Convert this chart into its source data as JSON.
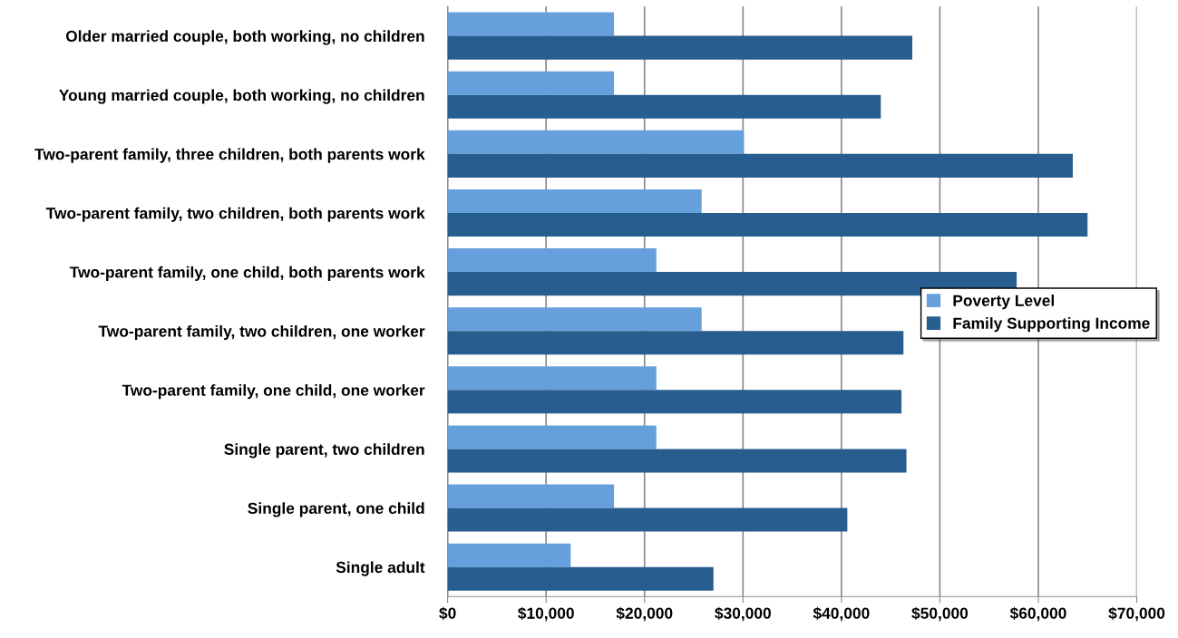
{
  "chart_data": {
    "type": "bar",
    "orientation": "horizontal",
    "categories": [
      "Older married couple, both working, no children",
      "Young married couple, both working, no children",
      "Two-parent family, three children, both parents work",
      "Two-parent family, two children, both parents work",
      "Two-parent family, one child, both parents work",
      "Two-parent family, two children, one worker",
      "Two-parent family, one child, one worker",
      "Single parent, two children",
      "Single parent, one child",
      "Single adult"
    ],
    "series": [
      {
        "name": "Poverty Level",
        "color": "#66a0dc",
        "values": [
          16900,
          16900,
          30100,
          25800,
          21200,
          25800,
          21200,
          21200,
          16900,
          12500
        ]
      },
      {
        "name": "Family Supporting Income",
        "color": "#275d8f",
        "values": [
          47200,
          44000,
          63500,
          65000,
          57800,
          46300,
          46100,
          46600,
          40600,
          27000
        ]
      }
    ],
    "xlim": [
      0,
      70000
    ],
    "xticks": [
      {
        "value": 0,
        "label": "$0"
      },
      {
        "value": 10000,
        "label": "$10,000"
      },
      {
        "value": 20000,
        "label": "$20,000"
      },
      {
        "value": 30000,
        "label": "$30,000"
      },
      {
        "value": 40000,
        "label": "$40,000"
      },
      {
        "value": 50000,
        "label": "$50,000"
      },
      {
        "value": 60000,
        "label": "$60,000"
      },
      {
        "value": 70000,
        "label": "$70,000"
      }
    ],
    "grid": "x",
    "legend": "right"
  }
}
